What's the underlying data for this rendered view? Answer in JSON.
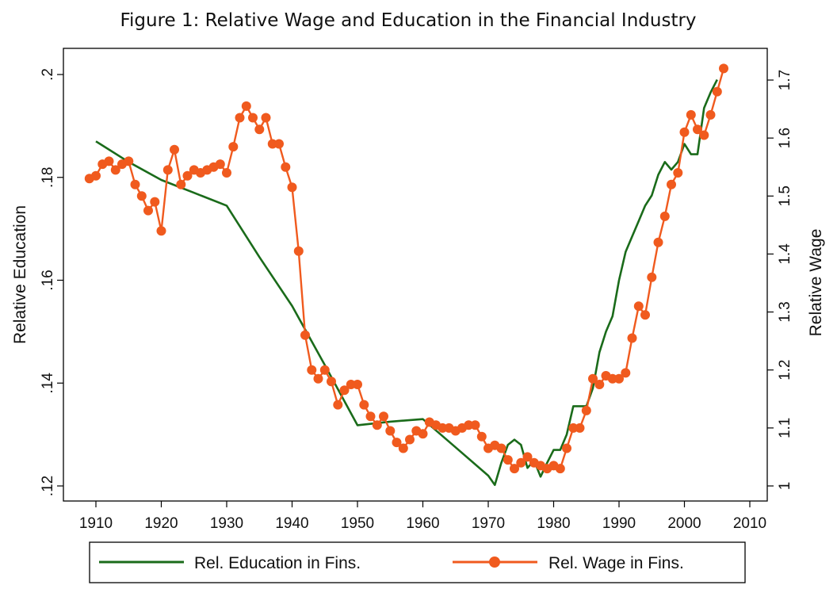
{
  "chart_data": {
    "type": "line",
    "title": "Figure 1: Relative Wage and Education in the Financial Industry",
    "xlabel": "",
    "ylabel_left": "Relative Education",
    "ylabel_right": "Relative Wage",
    "xlim": [
      1908,
      2012
    ],
    "ylim_left": [
      0.12,
      0.2
    ],
    "ylim_right": [
      1.0,
      1.7
    ],
    "x_ticks": [
      "1910",
      "1920",
      "1930",
      "1940",
      "1950",
      "1960",
      "1970",
      "1980",
      "1990",
      "2000",
      "2010"
    ],
    "y_left_ticks": [
      ".12",
      ".14",
      ".16",
      ".18",
      ".2"
    ],
    "y_right_ticks": [
      "1",
      "1.1",
      "1.2",
      "1.3",
      "1.4",
      "1.5",
      "1.6",
      "1.7"
    ],
    "grid": false,
    "legend_position": "bottom",
    "series": [
      {
        "name": "Rel. Education in Fins.",
        "axis": "left",
        "color": "#1a6b1a",
        "marker": "none",
        "x": [
          1910,
          1915,
          1920,
          1925,
          1930,
          1935,
          1940,
          1945,
          1950,
          1955,
          1960,
          1965,
          1970,
          1971,
          1972,
          1973,
          1974,
          1975,
          1976,
          1977,
          1978,
          1979,
          1980,
          1981,
          1982,
          1983,
          1984,
          1985,
          1986,
          1987,
          1988,
          1989,
          1990,
          1991,
          1992,
          1993,
          1994,
          1995,
          1996,
          1997,
          1998,
          1999,
          2000,
          2001,
          2002,
          2003,
          2004,
          2005
        ],
        "values": [
          0.187,
          0.183,
          0.1795,
          0.177,
          0.1745,
          0.1645,
          0.155,
          0.1435,
          0.1318,
          0.1325,
          0.133,
          0.1275,
          0.122,
          0.1202,
          0.1245,
          0.128,
          0.129,
          0.128,
          0.1235,
          0.125,
          0.1218,
          0.1245,
          0.127,
          0.127,
          0.13,
          0.1355,
          0.1355,
          0.1355,
          0.139,
          0.146,
          0.15,
          0.153,
          0.16,
          0.1655,
          0.1685,
          0.1715,
          0.1745,
          0.1765,
          0.1805,
          0.183,
          0.1815,
          0.183,
          0.1865,
          0.1845,
          0.1845,
          0.1935,
          0.1965,
          0.199
        ]
      },
      {
        "name": "Rel. Wage in Fins.",
        "axis": "right",
        "color": "#f05a1e",
        "marker": "circle",
        "x": [
          1909,
          1910,
          1911,
          1912,
          1913,
          1914,
          1915,
          1916,
          1917,
          1918,
          1919,
          1920,
          1921,
          1922,
          1923,
          1924,
          1925,
          1926,
          1927,
          1928,
          1929,
          1930,
          1931,
          1932,
          1933,
          1934,
          1935,
          1936,
          1937,
          1938,
          1939,
          1940,
          1941,
          1942,
          1943,
          1944,
          1945,
          1946,
          1947,
          1948,
          1949,
          1950,
          1951,
          1952,
          1953,
          1954,
          1955,
          1956,
          1957,
          1958,
          1959,
          1960,
          1961,
          1962,
          1963,
          1964,
          1965,
          1966,
          1967,
          1968,
          1969,
          1970,
          1971,
          1972,
          1973,
          1974,
          1975,
          1976,
          1977,
          1978,
          1979,
          1980,
          1981,
          1982,
          1983,
          1984,
          1985,
          1986,
          1987,
          1988,
          1989,
          1990,
          1991,
          1992,
          1993,
          1994,
          1995,
          1996,
          1997,
          1998,
          1999,
          2000,
          2001,
          2002,
          2003,
          2004,
          2005,
          2006
        ],
        "values": [
          1.53,
          1.535,
          1.555,
          1.56,
          1.545,
          1.555,
          1.56,
          1.52,
          1.5,
          1.475,
          1.49,
          1.44,
          1.545,
          1.58,
          1.52,
          1.535,
          1.545,
          1.54,
          1.545,
          1.55,
          1.555,
          1.54,
          1.585,
          1.635,
          1.655,
          1.635,
          1.615,
          1.635,
          1.59,
          1.59,
          1.55,
          1.515,
          1.405,
          1.26,
          1.2,
          1.185,
          1.2,
          1.18,
          1.14,
          1.165,
          1.175,
          1.175,
          1.14,
          1.12,
          1.105,
          1.12,
          1.095,
          1.075,
          1.065,
          1.08,
          1.095,
          1.09,
          1.11,
          1.105,
          1.1,
          1.1,
          1.095,
          1.1,
          1.105,
          1.105,
          1.085,
          1.065,
          1.07,
          1.065,
          1.045,
          1.03,
          1.04,
          1.05,
          1.04,
          1.035,
          1.03,
          1.035,
          1.03,
          1.065,
          1.1,
          1.1,
          1.13,
          1.185,
          1.175,
          1.19,
          1.185,
          1.185,
          1.195,
          1.255,
          1.31,
          1.295,
          1.36,
          1.42,
          1.465,
          1.52,
          1.54,
          1.61,
          1.64,
          1.615,
          1.605,
          1.64,
          1.68,
          1.72
        ]
      }
    ]
  }
}
